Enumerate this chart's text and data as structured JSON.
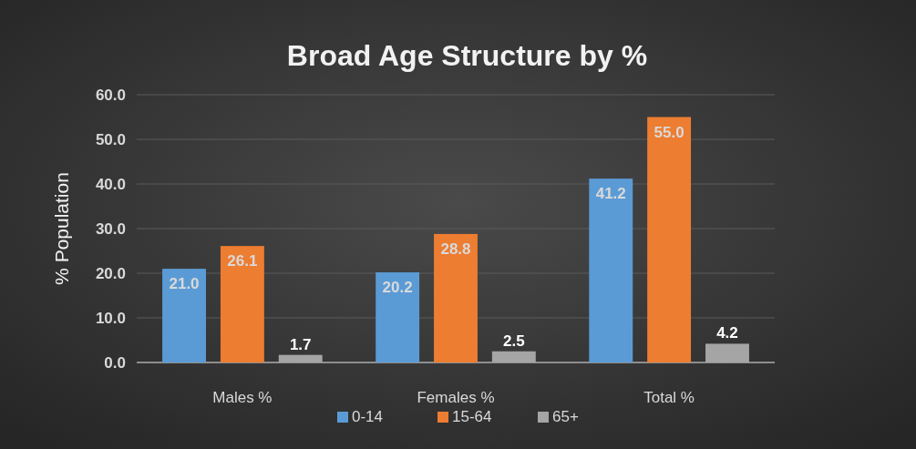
{
  "chart_data": {
    "type": "bar",
    "title": "Broad Age Structure by %",
    "ylabel": "%  Population",
    "categories": [
      "Males %",
      "Females %",
      "Total %"
    ],
    "series": [
      {
        "name": "0-14",
        "color": "#5b9bd5",
        "values": [
          21.0,
          20.2,
          41.2
        ],
        "value_labels": [
          "21.0",
          "20.2",
          "41.2"
        ]
      },
      {
        "name": "15-64",
        "color": "#ed7d31",
        "values": [
          26.1,
          28.8,
          55.0
        ],
        "value_labels": [
          "26.1",
          "28.8",
          "55.0"
        ]
      },
      {
        "name": "65+",
        "color": "#a5a5a5",
        "values": [
          1.7,
          2.5,
          4.2
        ],
        "value_labels": [
          "1.7",
          "2.5",
          "4.2"
        ]
      }
    ],
    "ylim": [
      0,
      60
    ],
    "yticks": [
      {
        "value": 0,
        "label": "0.0"
      },
      {
        "value": 10,
        "label": "10.0"
      },
      {
        "value": 20,
        "label": "20.0"
      },
      {
        "value": 30,
        "label": "30.0"
      },
      {
        "value": 40,
        "label": "40.0"
      },
      {
        "value": 50,
        "label": "50.0"
      },
      {
        "value": 60,
        "label": "60.0"
      }
    ],
    "grid": "y",
    "legend": "bottom"
  }
}
